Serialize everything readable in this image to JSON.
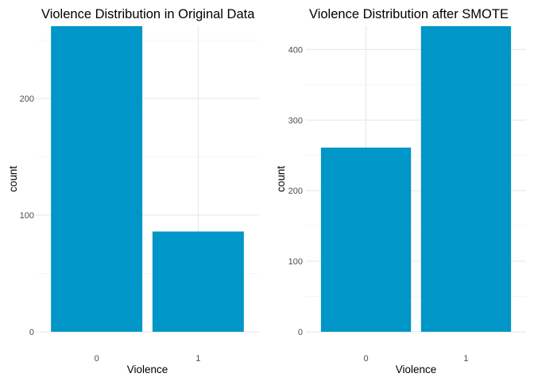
{
  "chart_data": [
    {
      "type": "bar",
      "title": "Violence Distribution in Original Data",
      "xlabel": "Violence",
      "ylabel": "count",
      "categories": [
        "0",
        "1"
      ],
      "values": [
        262,
        86
      ],
      "ylim": [
        0,
        262
      ],
      "yticks": [
        0,
        100,
        200
      ],
      "grid": true,
      "color": "#0096c7"
    },
    {
      "type": "bar",
      "title": "Violence Distribution after SMOTE",
      "xlabel": "Violence",
      "ylabel": "count",
      "categories": [
        "0",
        "1"
      ],
      "values": [
        261,
        433
      ],
      "ylim": [
        0,
        433
      ],
      "yticks": [
        0,
        100,
        200,
        300,
        400
      ],
      "grid": true,
      "color": "#0096c7"
    }
  ]
}
